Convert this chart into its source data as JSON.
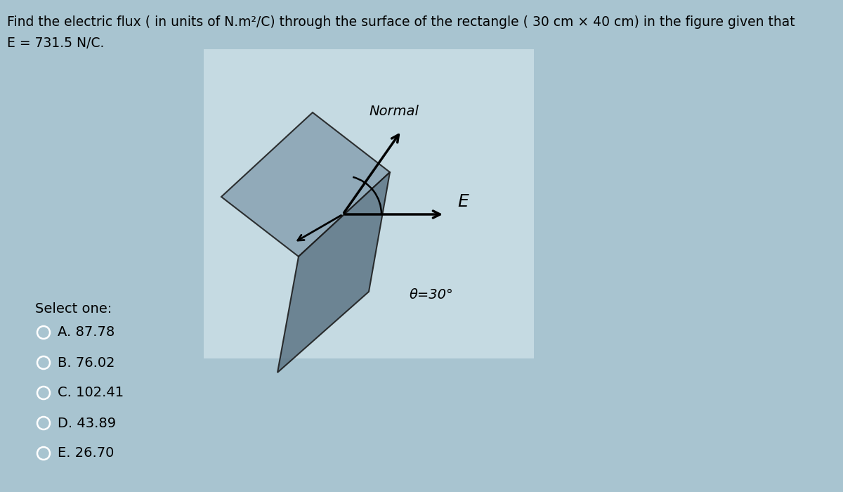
{
  "title_line1": "Find the electric flux ( in units of N.m²/C) through the surface of the rectangle ( 30 cm × 40 cm) in the figure given that",
  "title_line2": "E = 731.5 N/C.",
  "bg_color": "#a8c4d0",
  "panel_bg": "#c5dae2",
  "select_label": "Select one:",
  "options": [
    "A. 87.78",
    "B. 76.02",
    "C. 102.41",
    "D. 43.89",
    "E. 26.70"
  ],
  "normal_label": "Normal",
  "E_label": "E",
  "theta_label": "θ=30°",
  "poly1_color": "#8aa4b4",
  "poly2_color": "#607888",
  "title_fontsize": 13.5,
  "option_fontsize": 14
}
